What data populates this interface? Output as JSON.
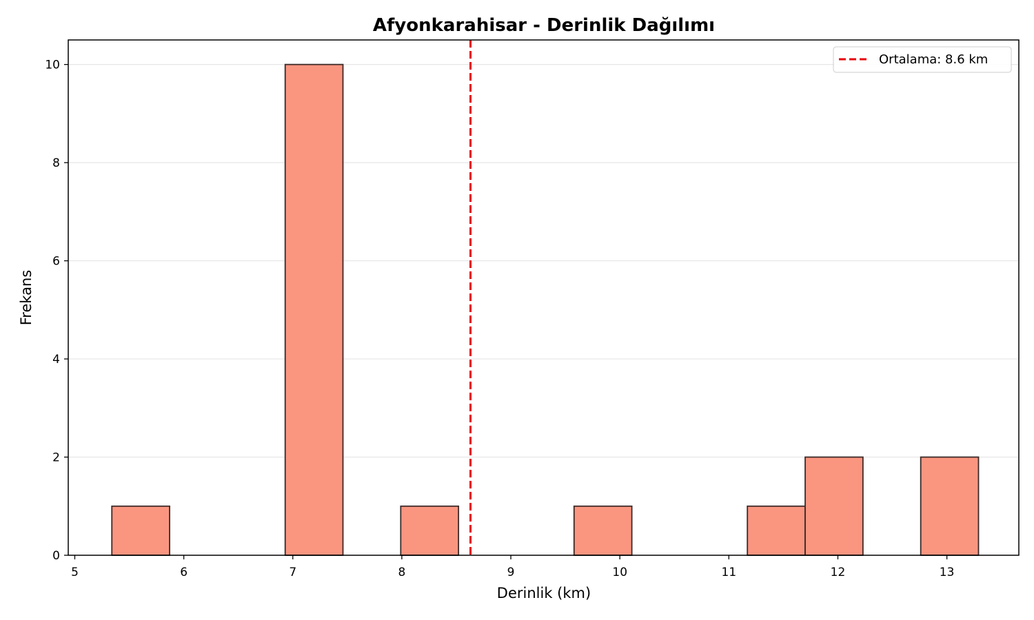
{
  "chart_data": {
    "type": "bar",
    "title": "Afyonkarahisar - Derinlik Dağılımı",
    "xlabel": "Derinlik (km)",
    "ylabel": "Frekans",
    "xlim": [
      4.94,
      13.66
    ],
    "ylim": [
      0,
      10.5
    ],
    "x_ticks": [
      5,
      6,
      7,
      8,
      9,
      10,
      11,
      12,
      13
    ],
    "y_ticks": [
      0,
      2,
      4,
      6,
      8,
      10
    ],
    "grid": "y",
    "bins": [
      {
        "start": 5.34,
        "end": 5.87,
        "count": 1
      },
      {
        "start": 6.93,
        "end": 7.46,
        "count": 10
      },
      {
        "start": 7.99,
        "end": 8.52,
        "count": 1
      },
      {
        "start": 9.58,
        "end": 10.11,
        "count": 1
      },
      {
        "start": 11.17,
        "end": 11.7,
        "count": 1
      },
      {
        "start": 11.7,
        "end": 12.23,
        "count": 2
      },
      {
        "start": 12.76,
        "end": 13.29,
        "count": 2
      }
    ],
    "mean_line": {
      "value": 8.63,
      "label": "Ortalama: 8.6 km",
      "color": "#e8000b",
      "style": "dashed"
    },
    "legend_position": "top-right",
    "bar_color": "#fa9580",
    "bar_edge_color": "#3a2a27"
  }
}
